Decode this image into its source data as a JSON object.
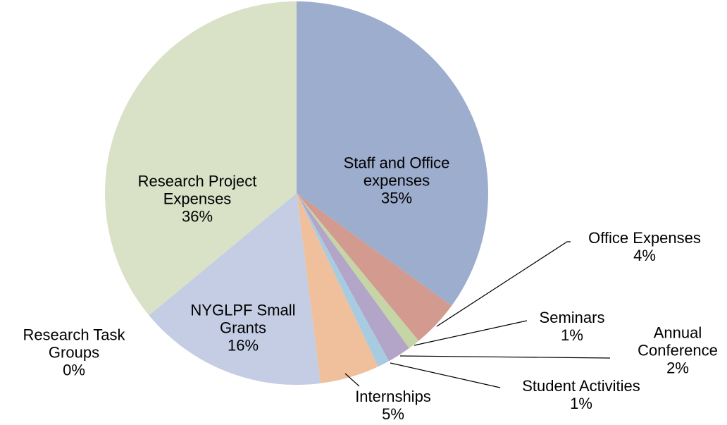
{
  "chart_data": {
    "type": "pie",
    "categories": [
      "Staff and Office expenses",
      "Office Expenses",
      "Seminars",
      "Annual Conference",
      "Student Activities",
      "Internships",
      "NYGLPF Small Grants",
      "Research Task Groups",
      "Research Project Expenses"
    ],
    "values": [
      35,
      4,
      1,
      2,
      1,
      5,
      16,
      0,
      36
    ],
    "value_labels": [
      "35%",
      "4%",
      "1%",
      "2%",
      "1%",
      "5%",
      "16%",
      "0%",
      "36%"
    ],
    "colors": [
      "#9dadce",
      "#d39a8f",
      "#c5d5a6",
      "#b3a5c8",
      "#a7cbe0",
      "#efc09b",
      "#c4cde3",
      "#d8b9b9",
      "#d9e1c7"
    ]
  }
}
